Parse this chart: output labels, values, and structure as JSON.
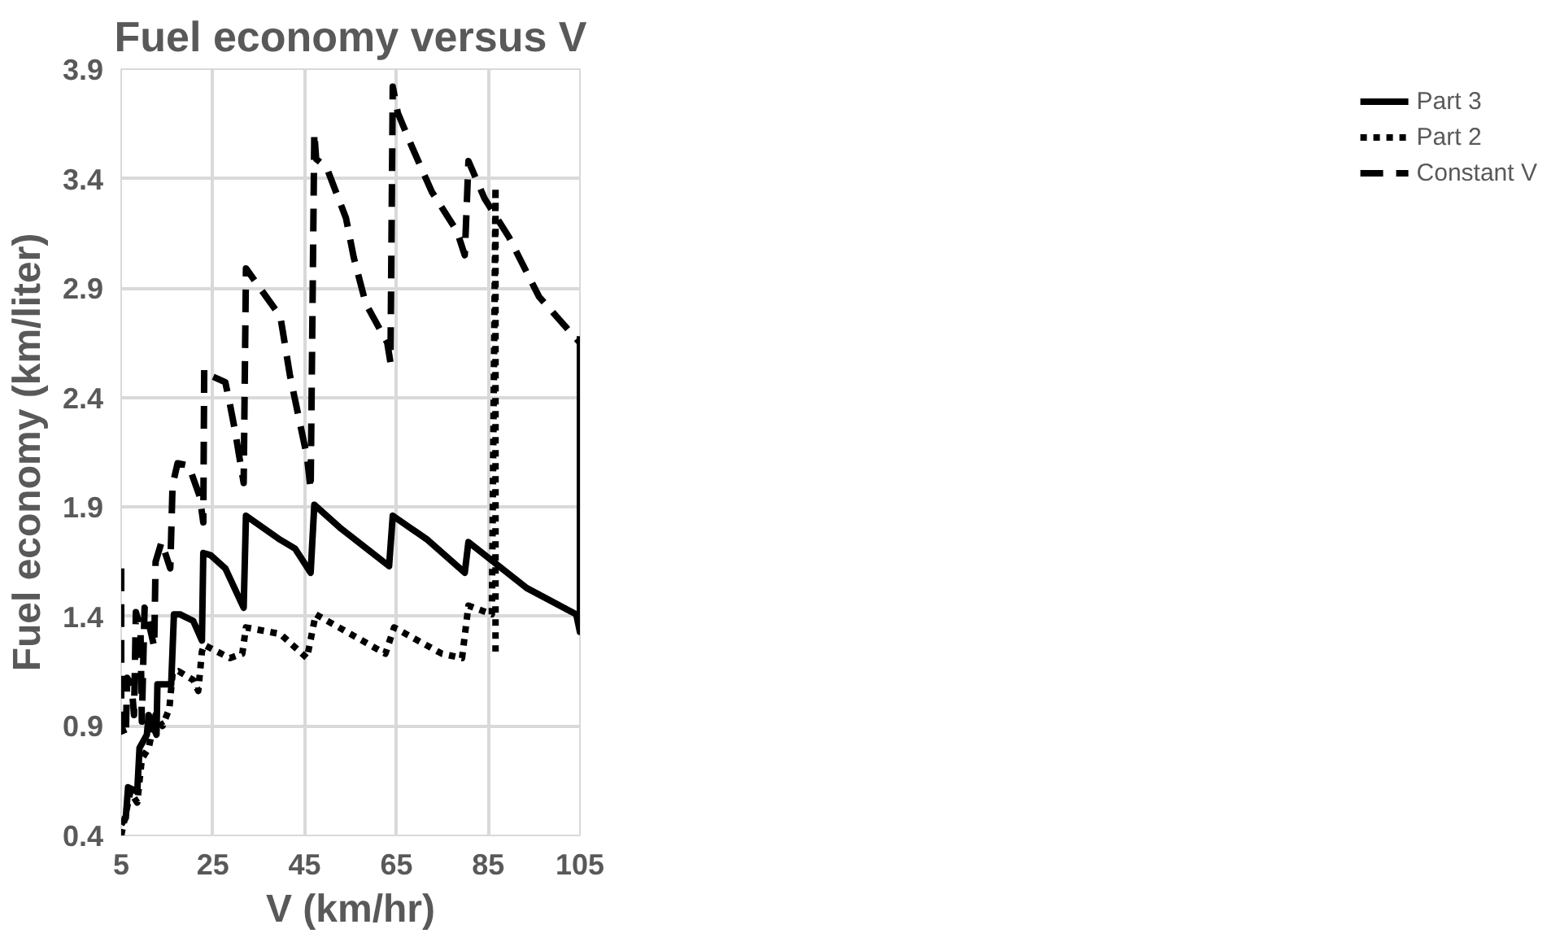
{
  "chart_data": {
    "type": "line",
    "title": "Fuel economy versus V",
    "xlabel": "V (km/hr)",
    "ylabel": "Fuel economy (km/liter)",
    "xlim": [
      5,
      105
    ],
    "xticks": [
      5,
      25,
      45,
      65,
      85,
      105
    ],
    "ylim": [
      0.4,
      3.9
    ],
    "yticks": [
      0.4,
      0.9,
      1.4,
      1.9,
      2.4,
      2.9,
      3.4,
      3.9
    ],
    "grid": true,
    "legend": "right",
    "marker": "none",
    "series": [
      {
        "name": "Part 3",
        "color": "#000000",
        "line_style": "solid",
        "x": [
          5,
          6,
          6.5,
          8.5,
          9,
          10.6,
          11,
          12.7,
          12.9,
          15.9,
          16.5,
          17.8,
          20.7,
          22.6,
          22.9,
          24.5,
          27.7,
          31.7,
          32.2,
          39.7,
          42.9,
          46.3,
          47.1,
          53,
          63.4,
          64.2,
          71.8,
          79.9,
          80.7,
          93.4,
          104.2,
          105,
          105
        ],
        "values": [
          0.45,
          0.48,
          0.62,
          0.6,
          0.8,
          0.86,
          0.95,
          0.86,
          1.09,
          1.09,
          1.41,
          1.41,
          1.38,
          1.29,
          1.69,
          1.68,
          1.62,
          1.44,
          1.86,
          1.75,
          1.71,
          1.6,
          1.91,
          1.8,
          1.63,
          1.86,
          1.75,
          1.6,
          1.74,
          1.53,
          1.41,
          1.33,
          2.68
        ]
      },
      {
        "name": "Part 2",
        "color": "#000000",
        "line_style": "dotted",
        "x": [
          5,
          6,
          7,
          8.5,
          9.5,
          11,
          12.5,
          14,
          15.5,
          16.2,
          17.5,
          20.7,
          21.8,
          22.6,
          23.1,
          28.7,
          31.4,
          32.2,
          39.7,
          45.5,
          47.4,
          62.6,
          64.5,
          74.9,
          79.3,
          80.7,
          85.8,
          86.6,
          86.6
        ],
        "values": [
          0.4,
          0.5,
          0.6,
          0.55,
          0.75,
          0.8,
          0.95,
          0.9,
          0.98,
          1.14,
          1.15,
          1.11,
          1.06,
          1.24,
          1.27,
          1.21,
          1.23,
          1.35,
          1.32,
          1.21,
          1.41,
          1.23,
          1.35,
          1.23,
          1.21,
          1.45,
          1.41,
          3.36,
          1.24
        ]
      },
      {
        "name": "Constant V",
        "color": "#000000",
        "line_style": "dashed",
        "x": [
          5,
          5,
          6,
          6.3,
          7.3,
          7.8,
          8.2,
          9.2,
          9.5,
          10.1,
          10.6,
          12.2,
          12.5,
          13.8,
          15.7,
          16.2,
          17.3,
          19.7,
          22.1,
          22.9,
          23.1,
          24.5,
          27.7,
          28.7,
          29.8,
          31.7,
          32.2,
          39.7,
          41.8,
          45.5,
          46.3,
          47.1,
          47.5,
          49.8,
          54,
          55.7,
          58.3,
          63,
          63.7,
          64.2,
          65.3,
          68.5,
          72.7,
          78.2,
          79.9,
          80.7,
          84.2,
          89.6,
          96.1,
          105
        ],
        "values": [
          1.62,
          0.9,
          0.85,
          1.12,
          1.08,
          0.95,
          1.42,
          1.35,
          0.92,
          1.44,
          1.41,
          1.26,
          1.65,
          1.74,
          1.62,
          2.0,
          2.1,
          2.09,
          1.95,
          1.83,
          2.53,
          2.5,
          2.47,
          2.37,
          2.25,
          2.01,
          2.99,
          2.77,
          2.5,
          2.13,
          1.98,
          3.61,
          3.49,
          3.45,
          3.22,
          3.04,
          2.83,
          2.65,
          2.56,
          3.82,
          3.7,
          3.54,
          3.34,
          3.16,
          3.05,
          3.48,
          3.31,
          3.13,
          2.86,
          2.65
        ]
      }
    ]
  }
}
